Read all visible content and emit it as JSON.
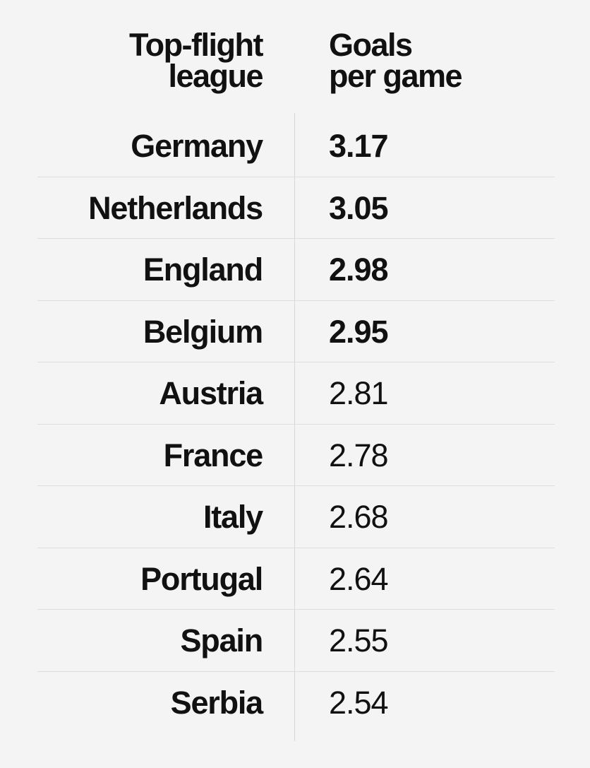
{
  "chart_data": {
    "type": "table",
    "columns": [
      "Top-flight league",
      "Goals per game"
    ],
    "header": {
      "country_line1": "Top-flight",
      "country_line2": "league",
      "goals_line1": "Goals",
      "goals_line2": "per game"
    },
    "rows": [
      {
        "country": "Germany",
        "value": "3.17",
        "weight": "bold"
      },
      {
        "country": "Netherlands",
        "value": "3.05",
        "weight": "bold"
      },
      {
        "country": "England",
        "value": "2.98",
        "weight": "bold"
      },
      {
        "country": "Belgium",
        "value": "2.95",
        "weight": "bold"
      },
      {
        "country": "Austria",
        "value": "2.81",
        "weight": "normal"
      },
      {
        "country": "France",
        "value": "2.78",
        "weight": "normal"
      },
      {
        "country": "Italy",
        "value": "2.68",
        "weight": "normal"
      },
      {
        "country": "Portugal",
        "value": "2.64",
        "weight": "normal"
      },
      {
        "country": "Spain",
        "value": "2.55",
        "weight": "normal"
      },
      {
        "country": "Serbia",
        "value": "2.54",
        "weight": "normal"
      }
    ]
  },
  "colors": {
    "background": "#f4f4f4",
    "text": "#111111",
    "rule": "#dddddd"
  }
}
